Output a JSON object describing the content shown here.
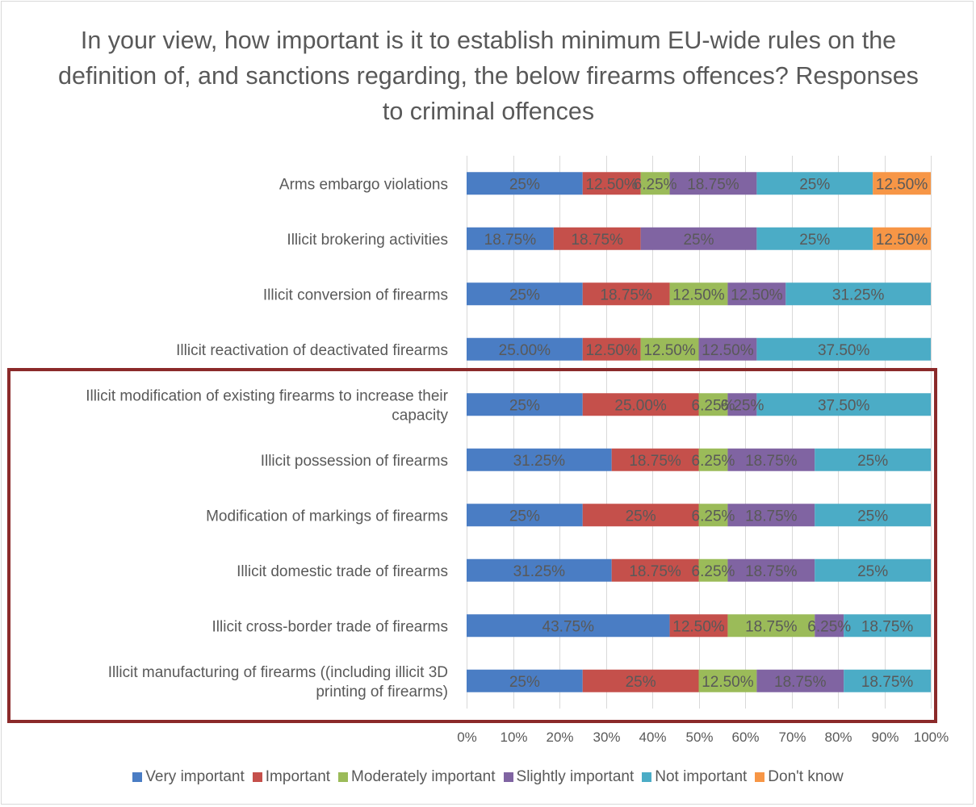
{
  "chart_data": {
    "type": "bar",
    "orientation": "horizontal",
    "stacked": "percent",
    "title": "In your view, how important is it to establish minimum EU-wide rules on the definition of, and sanctions regarding, the below firearms offences? Responses to criminal offences",
    "categories": [
      "Arms embargo violations",
      "Illicit brokering activities",
      "Illicit conversion of firearms",
      "Illicit reactivation of deactivated firearms",
      "Illicit modification of existing firearms to increase their capacity",
      "Illicit possession of firearms",
      "Modification of markings of firearms",
      "Illicit domestic trade of firearms",
      "Illicit cross-border trade of firearms",
      "Illicit manufacturing of firearms ((including illicit 3D printing of firearms)"
    ],
    "category_lines": [
      [
        "Arms embargo violations"
      ],
      [
        "Illicit brokering activities"
      ],
      [
        "Illicit conversion of firearms"
      ],
      [
        "Illicit reactivation of deactivated firearms"
      ],
      [
        "Illicit modification of existing firearms to increase their",
        "capacity"
      ],
      [
        "Illicit possession of firearms"
      ],
      [
        "Modification of markings of firearms"
      ],
      [
        "Illicit domestic trade of firearms"
      ],
      [
        "Illicit cross-border trade of firearms"
      ],
      [
        "Illicit manufacturing of firearms ((including illicit 3D",
        "printing of firearms)"
      ]
    ],
    "series": [
      {
        "name": "Very important",
        "color": "#4a7dc4",
        "values": [
          25,
          18.75,
          25,
          25,
          25,
          31.25,
          25,
          31.25,
          43.75,
          25
        ],
        "labels": [
          "25%",
          "18.75%",
          "25%",
          "25.00%",
          "25%",
          "31.25%",
          "25%",
          "31.25%",
          "43.75%",
          "25%"
        ]
      },
      {
        "name": "Important",
        "color": "#c5504b",
        "values": [
          12.5,
          18.75,
          18.75,
          12.5,
          25,
          18.75,
          25,
          18.75,
          12.5,
          25
        ],
        "labels": [
          "12.50%",
          "18.75%",
          "18.75%",
          "12.50%",
          "25.00%",
          "18.75%",
          "25%",
          "18.75%",
          "12.50%",
          "25%"
        ]
      },
      {
        "name": "Moderately important",
        "color": "#9bbb59",
        "values": [
          6.25,
          0,
          12.5,
          12.5,
          6.25,
          6.25,
          6.25,
          6.25,
          18.75,
          12.5
        ],
        "labels": [
          "6.25%",
          "",
          "12.50%",
          "12.50%",
          "6.25%",
          "6.25%",
          "6.25%",
          "6.25%",
          "18.75%",
          "12.50%"
        ]
      },
      {
        "name": "Slightly important",
        "color": "#8064a2",
        "values": [
          18.75,
          25,
          12.5,
          12.5,
          6.25,
          18.75,
          18.75,
          18.75,
          6.25,
          18.75
        ],
        "labels": [
          "18.75%",
          "25%",
          "12.50%",
          "12.50%",
          "6.25%",
          "18.75%",
          "18.75%",
          "18.75%",
          "6.25%",
          "18.75%"
        ]
      },
      {
        "name": "Not important",
        "color": "#4bacc6",
        "values": [
          25,
          25,
          31.25,
          37.5,
          37.5,
          25,
          25,
          25,
          18.75,
          18.75
        ],
        "labels": [
          "25%",
          "25%",
          "31.25%",
          "37.50%",
          "37.50%",
          "25%",
          "25%",
          "25%",
          "18.75%",
          "18.75%"
        ]
      },
      {
        "name": "Don't know",
        "color": "#f79646",
        "values": [
          12.5,
          12.5,
          0,
          0,
          0,
          0,
          0,
          0,
          0,
          0
        ],
        "labels": [
          "12.50%",
          "12.50%",
          "",
          "",
          "",
          "",
          "",
          "",
          "",
          ""
        ]
      }
    ],
    "xlim": [
      0,
      100
    ],
    "xticks": [
      "0%",
      "10%",
      "20%",
      "30%",
      "40%",
      "50%",
      "60%",
      "70%",
      "80%",
      "90%",
      "100%"
    ],
    "grid": true,
    "legend_position": "bottom",
    "highlight": {
      "from_category": "Illicit modification of existing firearms to increase their capacity",
      "to_category": "Illicit manufacturing of firearms ((including illicit 3D printing of firearms)",
      "color": "#8b2a2a"
    },
    "label_color": "#595959",
    "grid_color": "#d9d9d9"
  }
}
